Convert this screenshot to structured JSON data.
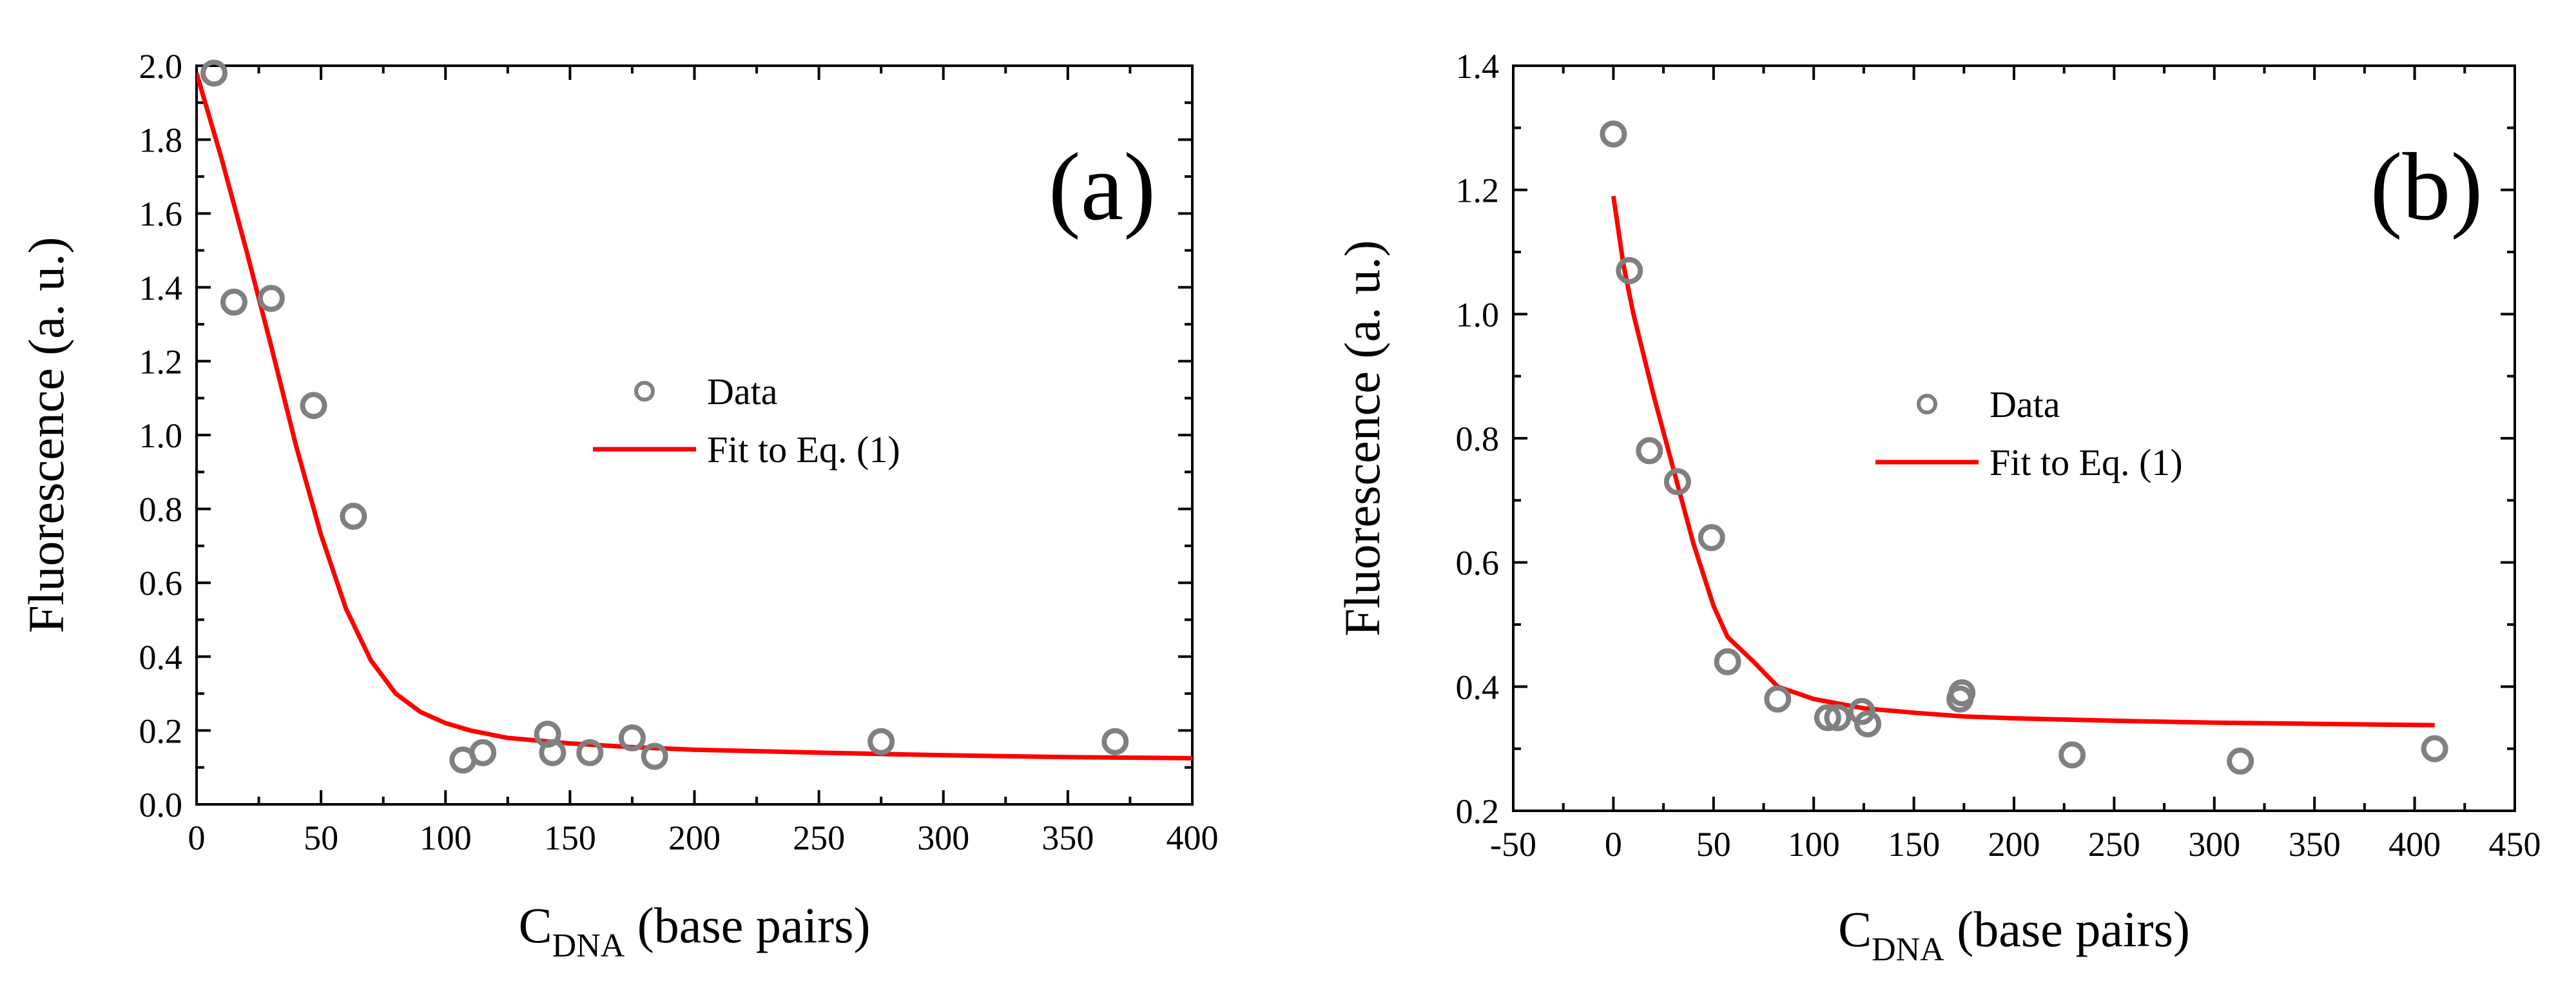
{
  "chart_data": [
    {
      "type": "scatter",
      "panel_label": "(a)",
      "xlabel_main": "C",
      "xlabel_sub": "DNA",
      "xlabel_rest": " (base pairs)",
      "ylabel": "Fluorescence (a. u.)",
      "xlim": [
        0,
        400
      ],
      "ylim": [
        0,
        2.0
      ],
      "xticks": [
        0,
        50,
        100,
        150,
        200,
        250,
        300,
        350,
        400
      ],
      "xtick_labels": [
        "0",
        "50",
        "100",
        "150",
        "200",
        "250",
        "300",
        "350",
        "400"
      ],
      "yticks": [
        0,
        0.2,
        0.4,
        0.6,
        0.8,
        1.0,
        1.2,
        1.4,
        1.6,
        1.8,
        2.0
      ],
      "ytick_labels": [
        "0.0",
        "0.2",
        "0.4",
        "0.6",
        "0.8",
        "1.0",
        "1.2",
        "1.4",
        "1.6",
        "1.8",
        "2.0"
      ],
      "legend_position": "center",
      "series": [
        {
          "name": "Data",
          "kind": "scatter",
          "color": "#808080",
          "x": [
            7,
            15,
            30,
            47,
            63,
            107,
            115,
            141,
            143,
            158,
            175,
            184,
            275,
            369
          ],
          "y": [
            1.98,
            1.36,
            1.37,
            1.08,
            0.78,
            0.12,
            0.14,
            0.19,
            0.14,
            0.14,
            0.18,
            0.13,
            0.17,
            0.17
          ]
        },
        {
          "name": "Fit to Eq. (1)",
          "kind": "line",
          "color": "#ff0000",
          "x": [
            0,
            10,
            20,
            30,
            40,
            50,
            60,
            70,
            80,
            90,
            100,
            110,
            125,
            150,
            175,
            200,
            250,
            300,
            350,
            400
          ],
          "y": [
            1.98,
            1.75,
            1.5,
            1.24,
            0.97,
            0.73,
            0.53,
            0.39,
            0.3,
            0.25,
            0.22,
            0.2,
            0.18,
            0.165,
            0.155,
            0.148,
            0.14,
            0.133,
            0.128,
            0.125
          ]
        }
      ]
    },
    {
      "type": "scatter",
      "panel_label": "(b)",
      "xlabel_main": "C",
      "xlabel_sub": "DNA",
      "xlabel_rest": " (base pairs)",
      "ylabel": "Fluorescence (a. u.)",
      "xlim": [
        -50,
        450
      ],
      "ylim": [
        0.2,
        1.4
      ],
      "xticks": [
        -50,
        0,
        50,
        100,
        150,
        200,
        250,
        300,
        350,
        400,
        450
      ],
      "xtick_labels": [
        "-50",
        "0",
        "50",
        "100",
        "150",
        "200",
        "250",
        "300",
        "350",
        "400",
        "450"
      ],
      "yticks": [
        0.2,
        0.4,
        0.6,
        0.8,
        1.0,
        1.2,
        1.4
      ],
      "ytick_labels": [
        "0.2",
        "0.4",
        "0.6",
        "0.8",
        "1.0",
        "1.2",
        "1.4"
      ],
      "legend_position": "center",
      "series": [
        {
          "name": "Data",
          "kind": "scatter",
          "color": "#808080",
          "x": [
            0,
            8,
            18,
            32,
            49,
            57,
            82,
            107,
            112,
            124,
            127,
            173,
            174,
            229,
            313,
            410
          ],
          "y": [
            1.29,
            1.07,
            0.78,
            0.73,
            0.64,
            0.44,
            0.38,
            0.35,
            0.35,
            0.36,
            0.34,
            0.38,
            0.39,
            0.29,
            0.28,
            0.3
          ]
        },
        {
          "name": "Fit to Eq. (1)",
          "kind": "line",
          "color": "#ff0000",
          "x": [
            0,
            5,
            10,
            20,
            30,
            40,
            50,
            57,
            70,
            82,
            100,
            125,
            150,
            175,
            200,
            250,
            300,
            350,
            410
          ],
          "y": [
            1.19,
            1.08,
            1.0,
            0.87,
            0.75,
            0.63,
            0.53,
            0.48,
            0.44,
            0.4,
            0.38,
            0.365,
            0.358,
            0.352,
            0.349,
            0.345,
            0.342,
            0.34,
            0.338
          ]
        }
      ]
    }
  ]
}
